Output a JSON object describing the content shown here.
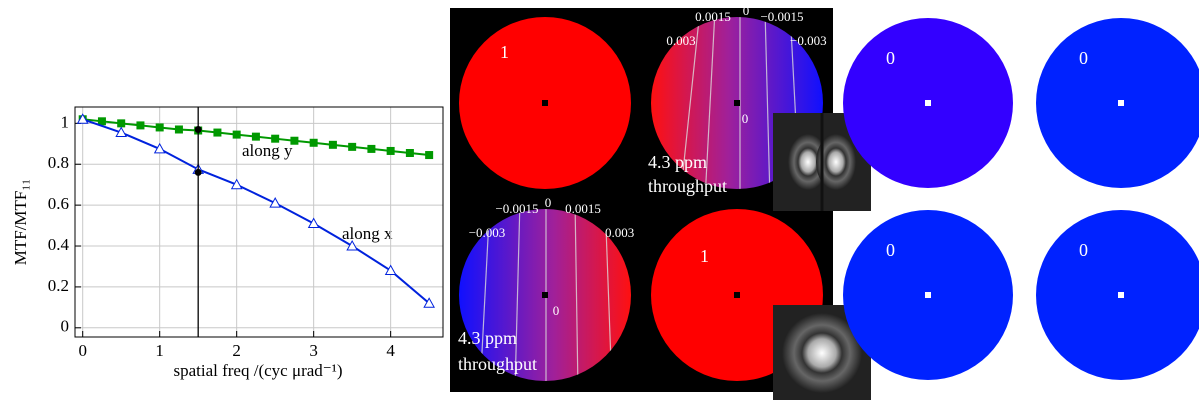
{
  "chart_data": {
    "type": "line",
    "xlabel": "spatial freq /(cyc μrad⁻¹)",
    "ylabel": "MTF/MTF₁₁",
    "xlim": [
      -0.1,
      4.68
    ],
    "ylim": [
      -0.045,
      1.08
    ],
    "xticks": [
      0,
      1,
      2,
      3,
      4
    ],
    "yticks": [
      0,
      0.2,
      0.4,
      0.6,
      0.8,
      1
    ],
    "grid": true,
    "series": [
      {
        "name": "along y",
        "color": "#009900",
        "marker": "square",
        "x": [
          0,
          0.25,
          0.5,
          0.75,
          1,
          1.25,
          1.5,
          1.75,
          2,
          2.25,
          2.5,
          2.75,
          3,
          3.25,
          3.5,
          3.75,
          4,
          4.25,
          4.5
        ],
        "values": [
          1.02,
          1.01,
          1.0,
          0.99,
          0.98,
          0.97,
          0.965,
          0.955,
          0.945,
          0.935,
          0.925,
          0.915,
          0.905,
          0.895,
          0.885,
          0.875,
          0.865,
          0.855,
          0.845
        ]
      },
      {
        "name": "along x",
        "color": "#0022dd",
        "marker": "triangle",
        "x": [
          0,
          0.5,
          1,
          1.5,
          2,
          2.5,
          3,
          3.5,
          4,
          4.5
        ],
        "values": [
          1.02,
          0.955,
          0.875,
          0.775,
          0.7,
          0.61,
          0.51,
          0.4,
          0.28,
          0.12
        ]
      }
    ],
    "vline_x": 1.5,
    "points": {
      "x": [
        1.5,
        1.5
      ],
      "values": [
        0.97,
        0.76
      ]
    }
  },
  "panels": [
    {
      "label": "1"
    },
    {
      "contours": [
        "0.0015",
        "0",
        "−0.0015",
        "0.003",
        "−0.003"
      ],
      "center_label": "0",
      "caption": [
        "4.3 ppm",
        "throughput"
      ]
    },
    {
      "contours": [
        "−0.0015",
        "0",
        "0.0015",
        "−0.003",
        "0.003"
      ],
      "center_label": "0",
      "caption": [
        "4.3 ppm",
        "throughput"
      ]
    },
    {
      "label": "1"
    }
  ],
  "right_panels": [
    {
      "label": "0"
    },
    {
      "label": "0"
    },
    {
      "label": "0"
    },
    {
      "label": "0"
    }
  ]
}
